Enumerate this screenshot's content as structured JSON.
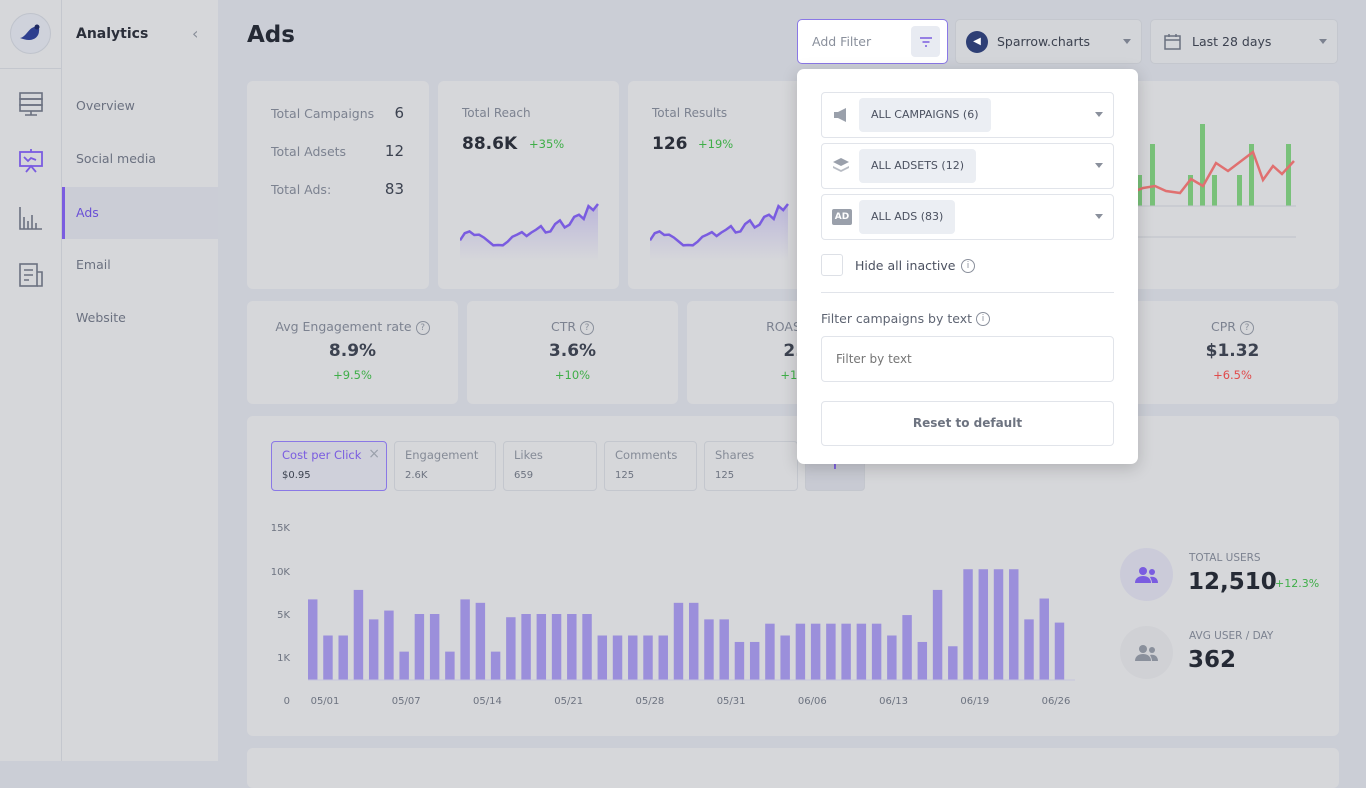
{
  "app": {
    "section_title": "Analytics",
    "page_title": "Ads"
  },
  "sidebar": {
    "items": [
      {
        "label": "Overview"
      },
      {
        "label": "Social media"
      },
      {
        "label": "Ads",
        "active": true
      },
      {
        "label": "Email"
      },
      {
        "label": "Website"
      }
    ]
  },
  "rail": {
    "icons": [
      "server-icon",
      "presentation-chart-icon",
      "bar-chart-icon",
      "document-icon"
    ]
  },
  "toolbar": {
    "filter_placeholder": "Add Filter",
    "account": "Sparrow.charts",
    "date_range": "Last 28 days"
  },
  "summary": {
    "rows": [
      {
        "label": "Total Campaigns",
        "value": "6"
      },
      {
        "label": "Total Adsets",
        "value": "12"
      },
      {
        "label": "Total Ads:",
        "value": "83"
      }
    ]
  },
  "reach": {
    "label": "Total Reach",
    "value": "88.6K",
    "change": "+35%",
    "spark": [
      3,
      5,
      5.5,
      4.5,
      4.6,
      3.8,
      2.7,
      1.6,
      1.7,
      1.6,
      2.6,
      4,
      4.6,
      5.3,
      4.2,
      5.2,
      6,
      7,
      5.2,
      5.5,
      7.6,
      8.6,
      6.6,
      7.4,
      9.6,
      10.2,
      9,
      12.6,
      11.5,
      13.2
    ]
  },
  "results": {
    "label": "Total Results",
    "value": "126",
    "change": "+19%",
    "spark": [
      3,
      5,
      5.5,
      4.5,
      4.6,
      3.8,
      2.7,
      1.6,
      1.7,
      1.6,
      2.6,
      4,
      4.6,
      5.3,
      4.2,
      5.2,
      6,
      7,
      5.2,
      5.5,
      7.6,
      8.6,
      6.6,
      7.4,
      9.6,
      10.2,
      9,
      12.6,
      11.5,
      13.2
    ]
  },
  "metrics": [
    {
      "label": "Avg Engagement rate",
      "value": "8.9%",
      "change": "+9.5%",
      "trend": "up"
    },
    {
      "label": "CTR",
      "value": "3.6%",
      "change": "+10%",
      "trend": "up"
    },
    {
      "label": "ROAS",
      "value": "2.",
      "change": "+12",
      "trend": "up"
    },
    {
      "label": "",
      "value": "",
      "change": "",
      "trend": "up"
    },
    {
      "label": "CPR",
      "value": "$1.32",
      "change": "+6.5%",
      "trend": "down"
    }
  ],
  "pills": [
    {
      "name": "Cost per Click",
      "value": "$0.95",
      "active": true
    },
    {
      "name": "Engagement",
      "value": "2.6K"
    },
    {
      "name": "Likes",
      "value": "659"
    },
    {
      "name": "Comments",
      "value": "125"
    },
    {
      "name": "Shares",
      "value": "125"
    }
  ],
  "add_pill": "+",
  "stats": [
    {
      "label": "TOTAL USERS",
      "value": "12,510",
      "change": "+12.3%"
    },
    {
      "label": "AVG USER / DAY",
      "value": "362"
    }
  ],
  "filter_popup": {
    "campaigns": "ALL CAMPAIGNS (6)",
    "adsets": "ALL ADSETS (12)",
    "ads": "ALL ADS (83)",
    "hide_inactive": "Hide all inactive",
    "hide_inactive_checked": false,
    "text_filter_label": "Filter campaigns by text",
    "text_filter_placeholder": "Filter by text",
    "text_filter_value": "",
    "reset": "Reset to default"
  },
  "colors": {
    "accent": "#7a5ce0",
    "bar": "#9b8fdb",
    "positive": "#3fae48",
    "negative": "#e04b4b"
  },
  "chart_data": {
    "type": "bar",
    "xlabel": "",
    "ylabel": "",
    "yticks": [
      "0",
      "1K",
      "5K",
      "10K",
      "15K"
    ],
    "ytick_values": [
      0,
      1000,
      5000,
      10000,
      15000
    ],
    "xticks": [
      "05/01",
      "05/07",
      "05/14",
      "05/21",
      "05/28",
      "05/31",
      "06/06",
      "06/13",
      "06/19",
      "06/26"
    ],
    "values": [
      6700,
      3000,
      3000,
      7800,
      4500,
      5400,
      1500,
      5000,
      5000,
      1500,
      6700,
      6300,
      1500,
      4700,
      5000,
      5000,
      5000,
      5000,
      5000,
      3000,
      3000,
      3000,
      3000,
      3000,
      6300,
      6300,
      4500,
      4500,
      2400,
      2400,
      4100,
      3000,
      4100,
      4100,
      4100,
      4100,
      4100,
      4100,
      3000,
      4900,
      2400,
      7800,
      2000,
      10200,
      10200,
      10200,
      10200,
      4500,
      6800,
      4200
    ]
  }
}
